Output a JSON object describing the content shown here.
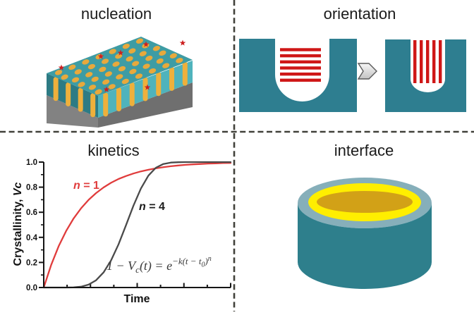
{
  "titles": {
    "nucleation": "nucleation",
    "orientation": "orientation",
    "kinetics": "kinetics",
    "interface": "interface"
  },
  "colors": {
    "divider": "#41413a",
    "teal": "#2e7e90",
    "teal_top": "#3e9ca4",
    "teal_left": "#2d7b84",
    "teal_right": "#4fb3bc",
    "stripe": "#eeb03c",
    "dot": "#e8a93c",
    "star": "#cc2020",
    "base_left": "#828282",
    "base_right": "#6f6f6f",
    "bar_red": "#cf1717",
    "arrow_stroke": "#5a5a5a",
    "rim": "#86afba",
    "cyl_body": "#2e7f8c",
    "ring_yellow": "#ffee00",
    "ring_gold": "#d2a117",
    "curve_red": "#e03c3c",
    "curve_black": "#4a4a4a",
    "axis": "#151515"
  },
  "nucleation": {
    "dot_rows": 6,
    "dot_cols": 7,
    "left_stripes": 4,
    "right_stripes": 7,
    "star_count": 7
  },
  "orientation": {
    "left_bars": {
      "count": 6,
      "direction": "horizontal"
    },
    "right_bars": {
      "count": 5,
      "direction": "vertical"
    },
    "arrow": "chevron-right-icon"
  },
  "axis": {
    "y_main": "Crystallinity, ",
    "y_var": "Vc",
    "x": "Time"
  },
  "kinetics_labels": {
    "n1": {
      "var": "n",
      "rest": " = 1"
    },
    "n4": {
      "var": "n",
      "rest": " = 4"
    }
  },
  "equation": {
    "lead": "1 − V",
    "sub_c": "c",
    "mid": "(t) = e",
    "exp_a": "−k(t − t",
    "exp_sub0": "0",
    "exp_close": ")",
    "exp_n": "n"
  },
  "chart_data": {
    "type": "line",
    "title": "kinetics",
    "xlabel": "Time",
    "ylabel": "Crystallinity, Vc",
    "ylim": [
      0,
      1
    ],
    "xlim_normalized": [
      0,
      1
    ],
    "yticks": [
      0.0,
      0.2,
      0.4,
      0.6,
      0.8,
      1.0
    ],
    "x_tick_intervals": 8,
    "grid": false,
    "legend_position": "inline-annotations",
    "x": [
      0,
      0.04,
      0.08,
      0.12,
      0.16,
      0.2,
      0.24,
      0.28,
      0.32,
      0.36,
      0.4,
      0.44,
      0.48,
      0.52,
      0.56,
      0.6,
      0.64,
      0.68,
      0.72,
      0.76,
      0.8,
      0.84,
      0.88,
      0.92,
      0.96,
      1
    ],
    "series": [
      {
        "name": "n = 1",
        "color": "#e03c3c",
        "values": [
          0,
          0.181,
          0.33,
          0.451,
          0.551,
          0.632,
          0.699,
          0.753,
          0.798,
          0.835,
          0.865,
          0.889,
          0.909,
          0.926,
          0.939,
          0.95,
          0.959,
          0.967,
          0.973,
          0.978,
          0.982,
          0.985,
          0.988,
          0.99,
          0.992,
          0.993
        ]
      },
      {
        "name": "n = 4",
        "color": "#4a4a4a",
        "values": [
          0,
          0,
          0,
          0,
          0.001,
          0.007,
          0.023,
          0.058,
          0.12,
          0.216,
          0.344,
          0.496,
          0.653,
          0.79,
          0.892,
          0.955,
          0.985,
          0.996,
          0.999,
          1,
          1,
          1,
          1,
          1,
          1,
          1
        ]
      }
    ],
    "annotations": [
      {
        "text": "n = 1",
        "color": "#e03c3c"
      },
      {
        "text": "n = 4",
        "color": "#1b1b1b"
      },
      {
        "text": "1 − Vc(t) = e^(−k(t − t0)^n)",
        "color": "#3a3a3a"
      }
    ]
  }
}
